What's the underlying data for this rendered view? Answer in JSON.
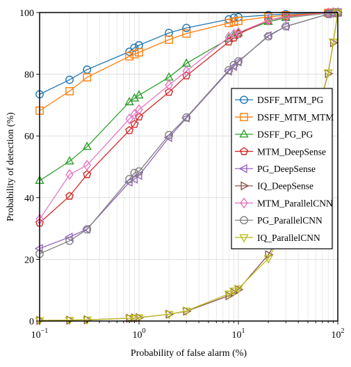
{
  "chart_data": {
    "type": "line",
    "xscale": "log",
    "xlim": [
      0.1,
      100
    ],
    "ylim": [
      0,
      100
    ],
    "xlabel": "Probability of false alarm (%)",
    "ylabel": "Probability of detection (%)",
    "grid": true,
    "legend_position": "center-right",
    "x_ticks": [
      0.1,
      1,
      10,
      100
    ],
    "x_tick_labels": [
      {
        "base": "10",
        "exp": "−1"
      },
      {
        "base": "10",
        "exp": "0"
      },
      {
        "base": "10",
        "exp": "1"
      },
      {
        "base": "10",
        "exp": "2"
      }
    ],
    "y_ticks": [
      0,
      20,
      40,
      60,
      80,
      100
    ],
    "y_tick_labels": [
      "0",
      "20",
      "40",
      "60",
      "80",
      "100"
    ],
    "series": [
      {
        "name": "DSFF_MTM_PG",
        "color": "#1f77b4",
        "marker": "circle",
        "x": [
          0.1,
          0.2,
          0.3,
          0.8,
          0.9,
          1,
          2,
          3,
          8,
          9,
          10,
          20,
          30,
          80,
          90,
          100
        ],
        "y": [
          73.5,
          78.2,
          81.5,
          87.3,
          88.6,
          89.4,
          93.4,
          95.0,
          97.8,
          98.3,
          98.5,
          99.2,
          99.5,
          99.9,
          100,
          100
        ]
      },
      {
        "name": "DSFF_MTM_MTM",
        "color": "#ff7f0e",
        "marker": "square",
        "x": [
          0.1,
          0.2,
          0.3,
          0.8,
          0.9,
          1,
          2,
          3,
          8,
          9,
          10,
          20,
          30,
          80,
          90,
          100
        ],
        "y": [
          68.2,
          74.5,
          79.0,
          85.8,
          86.5,
          87.1,
          91.2,
          93.2,
          96.6,
          97.0,
          97.3,
          98.6,
          99.1,
          99.9,
          100,
          100
        ]
      },
      {
        "name": "DSFF_PG_PG",
        "color": "#2ca02c",
        "marker": "triangle-up",
        "x": [
          0.1,
          0.2,
          0.3,
          0.8,
          0.9,
          1,
          2,
          3,
          8,
          9,
          10,
          20,
          30,
          80,
          90,
          100
        ],
        "y": [
          45.5,
          51.8,
          56.5,
          71.0,
          72.2,
          73.2,
          79.0,
          83.5,
          91.5,
          92.5,
          93.3,
          97.0,
          98.3,
          99.8,
          100,
          100
        ]
      },
      {
        "name": "MTM_DeepSense",
        "color": "#d62728",
        "marker": "pentagon",
        "x": [
          0.1,
          0.2,
          0.3,
          0.8,
          0.9,
          1,
          2,
          3,
          8,
          9,
          10,
          20,
          30,
          80,
          90,
          100
        ],
        "y": [
          31.8,
          40.5,
          47.5,
          61.8,
          63.8,
          66.2,
          74.2,
          79.5,
          90.5,
          91.8,
          93.0,
          97.5,
          98.7,
          99.9,
          100,
          100
        ]
      },
      {
        "name": "PG_DeepSense",
        "color": "#9467bd",
        "marker": "triangle-left",
        "x": [
          0.1,
          0.2,
          0.3,
          0.8,
          0.9,
          1,
          2,
          3,
          8,
          9,
          10,
          20,
          30,
          80,
          90,
          100
        ],
        "y": [
          23.5,
          27.2,
          29.8,
          45.0,
          46.0,
          47.2,
          59.5,
          65.8,
          81.0,
          82.5,
          84.0,
          92.5,
          95.5,
          99.5,
          99.8,
          100
        ]
      },
      {
        "name": "IQ_DeepSense",
        "color": "#8c564b",
        "marker": "triangle-right",
        "x": [
          0.1,
          0.2,
          0.3,
          0.8,
          0.9,
          1,
          2,
          3,
          8,
          9,
          10,
          20,
          30,
          80,
          90,
          100
        ],
        "y": [
          0.2,
          0.3,
          0.4,
          0.9,
          1.0,
          1.1,
          2.2,
          3.2,
          8.2,
          9.2,
          10.2,
          21.5,
          30.5,
          80.2,
          90.2,
          100
        ]
      },
      {
        "name": "MTM_ParallelCNN",
        "color": "#e377c2",
        "marker": "diamond",
        "x": [
          0.1,
          0.2,
          0.3,
          0.8,
          0.9,
          1,
          2,
          3,
          8,
          9,
          10,
          20,
          30,
          80,
          90,
          100
        ],
        "y": [
          33.0,
          47.5,
          50.5,
          65.5,
          67.0,
          68.5,
          76.5,
          81.0,
          92.0,
          93.0,
          93.5,
          97.5,
          98.5,
          99.9,
          100,
          100
        ]
      },
      {
        "name": "PG_ParallelCNN",
        "color": "#7f7f7f",
        "marker": "octagon",
        "x": [
          0.1,
          0.2,
          0.3,
          0.8,
          0.9,
          1,
          2,
          3,
          8,
          9,
          10,
          20,
          30,
          80,
          90,
          100
        ],
        "y": [
          21.8,
          26.0,
          29.7,
          46.0,
          48.0,
          48.5,
          60.3,
          66.0,
          81.3,
          83.0,
          84.2,
          92.3,
          95.5,
          99.5,
          99.8,
          100
        ]
      },
      {
        "name": "IQ_ParallelCNN",
        "color": "#bcbd22",
        "marker": "triangle-down",
        "x": [
          0.1,
          0.2,
          0.3,
          0.8,
          0.9,
          1,
          2,
          3,
          8,
          9,
          10,
          20,
          30,
          80,
          90,
          100
        ],
        "y": [
          0.2,
          0.3,
          0.4,
          0.9,
          1.0,
          1.1,
          2.2,
          3.3,
          8.8,
          9.8,
          10.5,
          20.3,
          30.5,
          80.5,
          90.5,
          100
        ]
      }
    ]
  }
}
